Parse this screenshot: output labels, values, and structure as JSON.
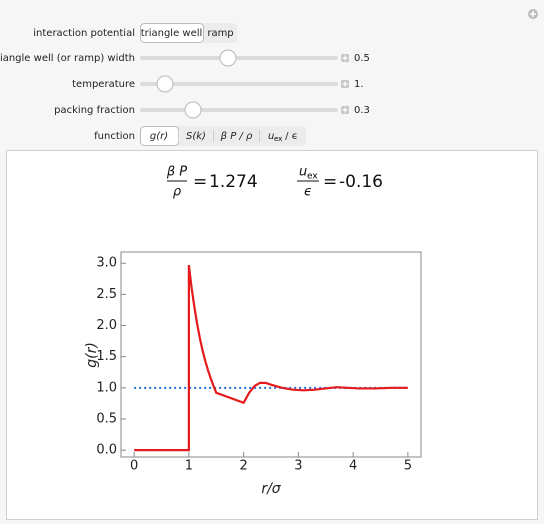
{
  "controls": {
    "potential": {
      "label": "interaction potential",
      "options": [
        "triangle well",
        "ramp"
      ]
    },
    "sliders": [
      {
        "label": "triangle well (or ramp) width",
        "value": "0.5"
      },
      {
        "label": "temperature",
        "value": "1."
      },
      {
        "label": "packing fraction",
        "value": "0.3"
      }
    ],
    "function": {
      "label": "function",
      "options": [
        "g(r)",
        "S(k)",
        "β P / ρ"
      ],
      "energy_option": {
        "main": "u",
        "sub": "ex",
        "rest": " / ϵ"
      }
    }
  },
  "formula": {
    "eq": "=",
    "pressure": {
      "num": "β P",
      "den": "ρ",
      "value": 1.274
    },
    "energy": {
      "num": "u",
      "sub": "ex",
      "den": "ϵ",
      "value": -0.16
    }
  },
  "chart_data": {
    "type": "line",
    "x_label": "r/σ",
    "y_label": "g(r)",
    "xlim": [
      -0.24,
      5.24
    ],
    "ylim": [
      -0.11,
      3.18
    ],
    "xticks": [
      0,
      1,
      2,
      3,
      4,
      5
    ],
    "yticks": [
      {
        "value": 0,
        "label": "0.0"
      },
      0.5,
      {
        "value": 1,
        "label": "1.0"
      },
      1.5,
      {
        "value": 2,
        "label": "2.0"
      },
      2.5,
      {
        "value": 3,
        "label": "3.0"
      }
    ],
    "series": [
      {
        "color": "#e41a1c",
        "style": "solid",
        "x": [
          0,
          1,
          1,
          1.05,
          1.1,
          1.15,
          1.2,
          1.25,
          1.3,
          1.35,
          1.4,
          1.45,
          1.5,
          2.0,
          2.1,
          2.2,
          2.3,
          2.4,
          2.5,
          2.7,
          2.9,
          3.1,
          3.3,
          3.5,
          3.7,
          3.9,
          4.1,
          4.4,
          4.7,
          5
        ],
        "values": [
          0,
          0,
          2.97,
          2.6,
          2.3,
          2.03,
          1.8,
          1.6,
          1.43,
          1.28,
          1.15,
          1.03,
          0.92,
          0.76,
          0.92,
          1.03,
          1.08,
          1.08,
          1.05,
          1.0,
          0.97,
          0.96,
          0.97,
          0.99,
          1.01,
          1.0,
          0.99,
          0.99,
          1.0,
          1.0
        ]
      },
      {
        "color": "#1f6fd6",
        "style": "dotted",
        "x": [
          0,
          5
        ],
        "values": [
          1,
          1
        ]
      }
    ]
  }
}
